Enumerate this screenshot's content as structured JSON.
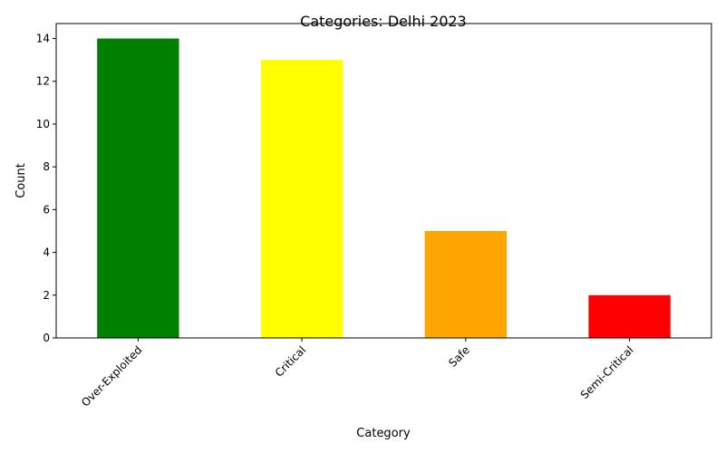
{
  "chart_data": {
    "type": "bar",
    "title": "Categories: Delhi 2023",
    "xlabel": "Category",
    "ylabel": "Count",
    "categories": [
      "Over-Exploited",
      "Critical",
      "Safe",
      "Semi-Critical"
    ],
    "values": [
      14,
      13,
      5,
      2
    ],
    "colors": [
      "#008000",
      "#ffff00",
      "#ffa500",
      "#ff0000"
    ],
    "ylim": [
      0,
      14.7
    ],
    "yticks": [
      0,
      2,
      4,
      6,
      8,
      10,
      12,
      14
    ],
    "xtick_rotation": 45,
    "grid": false,
    "legend": "none"
  }
}
